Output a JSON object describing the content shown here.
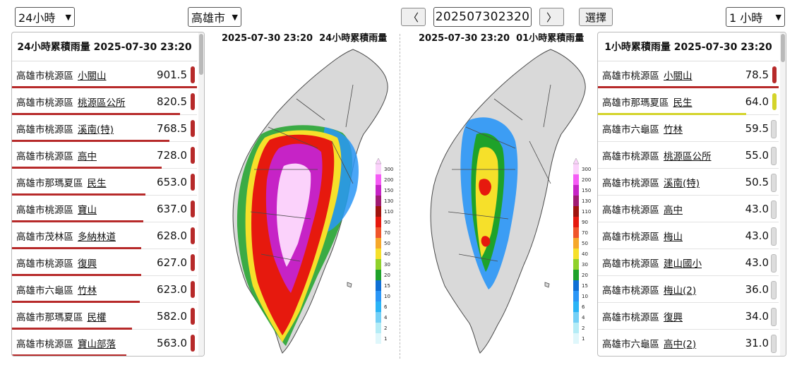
{
  "controls": {
    "period_select": "24小時",
    "city_select": "高雄市",
    "prev_label": "〈",
    "timestamp": "202507302320",
    "next_label": "〉",
    "select_button": "選擇",
    "right_period_select": "1 小時"
  },
  "left_panel": {
    "title": "24小時累積雨量 2025-07-30 23:20",
    "rows": [
      {
        "loc": "高雄市桃源區",
        "station": "小關山",
        "value": "901.5",
        "color": "#b72a2a"
      },
      {
        "loc": "高雄市桃源區",
        "station": "桃源區公所",
        "value": "820.5",
        "color": "#b72a2a"
      },
      {
        "loc": "高雄市桃源區",
        "station": "溪南(特)",
        "value": "768.5",
        "color": "#b72a2a"
      },
      {
        "loc": "高雄市桃源區",
        "station": "高中",
        "value": "728.0",
        "color": "#b72a2a"
      },
      {
        "loc": "高雄市那瑪夏區",
        "station": "民生",
        "value": "653.0",
        "color": "#b72a2a"
      },
      {
        "loc": "高雄市桃源區",
        "station": "寶山",
        "value": "637.0",
        "color": "#b72a2a"
      },
      {
        "loc": "高雄市茂林區",
        "station": "多納林道",
        "value": "628.0",
        "color": "#b72a2a"
      },
      {
        "loc": "高雄市桃源區",
        "station": "復興",
        "value": "627.0",
        "color": "#b72a2a"
      },
      {
        "loc": "高雄市六龜區",
        "station": "竹林",
        "value": "623.0",
        "color": "#b72a2a"
      },
      {
        "loc": "高雄市那瑪夏區",
        "station": "民權",
        "value": "582.0",
        "color": "#b72a2a"
      },
      {
        "loc": "高雄市桃源區",
        "station": "寶山部落",
        "value": "563.0",
        "color": "#b72a2a"
      }
    ]
  },
  "right_panel": {
    "title": "1小時累積雨量 2025-07-30 23:20",
    "rows": [
      {
        "loc": "高雄市桃源區",
        "station": "小關山",
        "value": "78.5",
        "color": "#b72a2a"
      },
      {
        "loc": "高雄市那瑪夏區",
        "station": "民生",
        "value": "64.0",
        "color": "#d4d42a"
      },
      {
        "loc": "高雄市六龜區",
        "station": "竹林",
        "value": "59.5",
        "color": "#dddddd"
      },
      {
        "loc": "高雄市桃源區",
        "station": "桃源區公所",
        "value": "55.0",
        "color": "#dddddd"
      },
      {
        "loc": "高雄市桃源區",
        "station": "溪南(特)",
        "value": "50.5",
        "color": "#dddddd"
      },
      {
        "loc": "高雄市桃源區",
        "station": "高中",
        "value": "43.0",
        "color": "#dddddd"
      },
      {
        "loc": "高雄市桃源區",
        "station": "梅山",
        "value": "43.0",
        "color": "#dddddd"
      },
      {
        "loc": "高雄市桃源區",
        "station": "建山國小",
        "value": "43.0",
        "color": "#dddddd"
      },
      {
        "loc": "高雄市桃源區",
        "station": "梅山(2)",
        "value": "36.0",
        "color": "#dddddd"
      },
      {
        "loc": "高雄市桃源區",
        "station": "復興",
        "value": "34.0",
        "color": "#dddddd"
      },
      {
        "loc": "高雄市六龜區",
        "station": "高中(2)",
        "value": "31.0",
        "color": "#dddddd"
      }
    ]
  },
  "map_left": {
    "title_time": "2025-07-30 23:20",
    "title_label": "24小時累積雨量",
    "legend": [
      "300",
      "200",
      "150",
      "130",
      "110",
      "90",
      "70",
      "50",
      "40",
      "30",
      "20",
      "15",
      "10",
      "6",
      "4",
      "2",
      "1"
    ]
  },
  "map_right": {
    "title_time": "2025-07-30 23:20",
    "title_label": "01小時累積雨量",
    "legend": [
      "300",
      "200",
      "150",
      "130",
      "110",
      "90",
      "70",
      "50",
      "40",
      "30",
      "20",
      "15",
      "10",
      "6",
      "4",
      "2",
      "1"
    ]
  },
  "legend_colors": [
    "#fbd2fb",
    "#f55bf5",
    "#c623c6",
    "#a01a72",
    "#a0140e",
    "#e6190e",
    "#f0552a",
    "#f6a82a",
    "#f6e02a",
    "#8fd12a",
    "#1ea22a",
    "#0f6fd4",
    "#2a96f6",
    "#2ab4f6",
    "#74d0f6",
    "#b4ecf6",
    "#dff7fb"
  ],
  "ranking_progress_24h": [
    1.0,
    0.91,
    0.85,
    0.81,
    0.72,
    0.71,
    0.7,
    0.7,
    0.69,
    0.65,
    0.62
  ],
  "ranking_progress_1h": [
    1.0,
    0.82
  ]
}
